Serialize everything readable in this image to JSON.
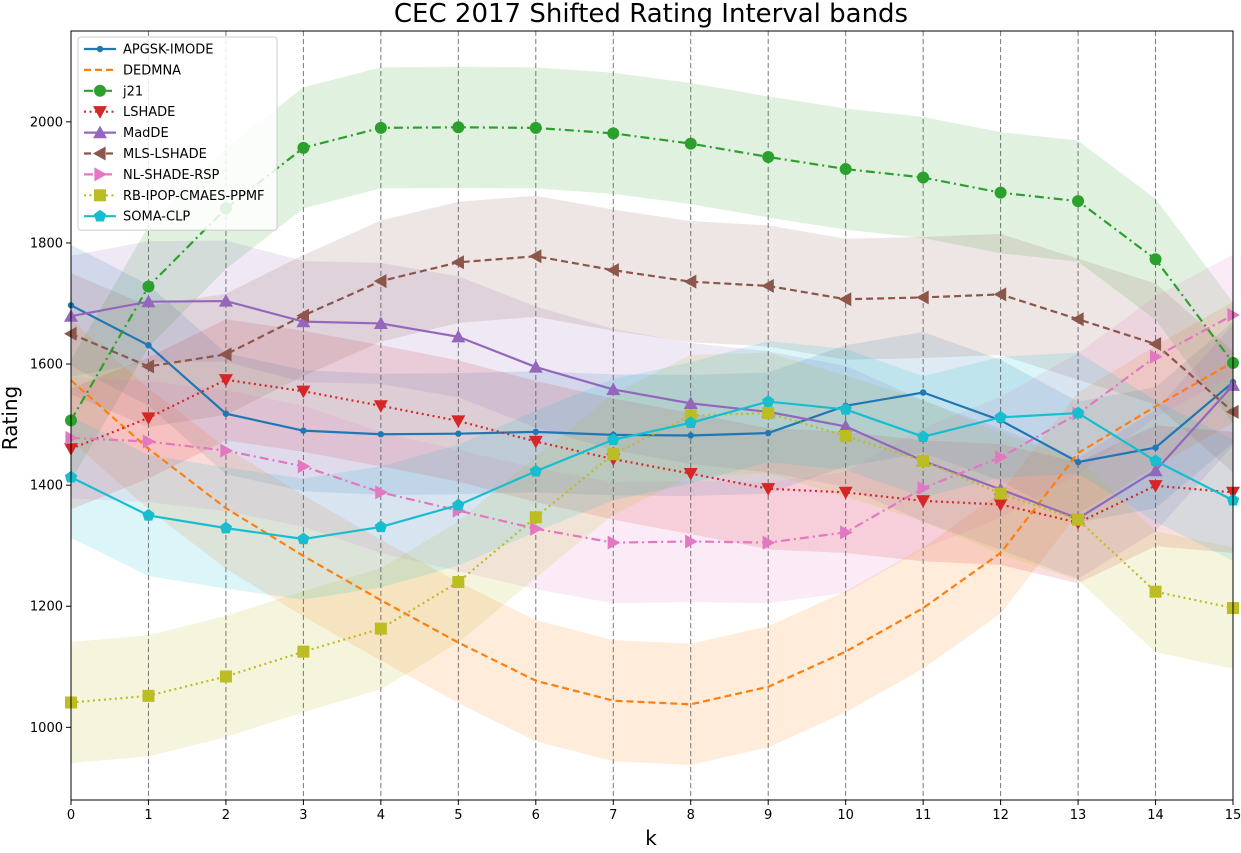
{
  "chart_data": {
    "type": "line",
    "title": "CEC 2017 Shifted Rating Interval bands",
    "xlabel": "k",
    "ylabel": "Rating",
    "x": [
      0,
      1,
      2,
      3,
      4,
      5,
      6,
      7,
      8,
      9,
      10,
      11,
      12,
      13,
      14,
      15
    ],
    "xlim": [
      0,
      15
    ],
    "ylim": [
      880,
      2150
    ],
    "yticks": [
      1000,
      1200,
      1400,
      1600,
      1800,
      2000
    ],
    "xticks": [
      0,
      1,
      2,
      3,
      4,
      5,
      6,
      7,
      8,
      9,
      10,
      11,
      12,
      13,
      14,
      15
    ],
    "band_halfwidth": 100,
    "vertical_gridlines": true,
    "legend_position": "top-left",
    "series": [
      {
        "name": "APGSK-IMODE",
        "color": "#1f77b4",
        "marker": "dot",
        "dash": "solid",
        "values": [
          1697,
          1631,
          1518,
          1490,
          1484,
          1485,
          1488,
          1483,
          1482,
          1486,
          1531,
          1553,
          1507,
          1438,
          1462,
          1570
        ]
      },
      {
        "name": "DEDMNA",
        "color": "#ff7f0e",
        "marker": "none",
        "dash": "dashed",
        "values": [
          1573,
          1460,
          1362,
          1283,
          1210,
          1140,
          1077,
          1044,
          1038,
          1067,
          1125,
          1197,
          1288,
          1453,
          1530,
          1603
        ]
      },
      {
        "name": "j21",
        "color": "#2ca02c",
        "marker": "circle",
        "dash": "dashdot",
        "values": [
          1507,
          1728,
          1857,
          1957,
          1990,
          1991,
          1990,
          1981,
          1964,
          1942,
          1922,
          1908,
          1883,
          1869,
          1773,
          1602
        ]
      },
      {
        "name": "LSHADE",
        "color": "#d62728",
        "marker": "triangle-down",
        "dash": "dotted",
        "values": [
          1460,
          1511,
          1574,
          1555,
          1531,
          1506,
          1472,
          1443,
          1419,
          1394,
          1388,
          1374,
          1368,
          1338,
          1399,
          1388
        ]
      },
      {
        "name": "MadDE",
        "color": "#9467bd",
        "marker": "triangle-up",
        "dash": "solid",
        "values": [
          1679,
          1703,
          1704,
          1670,
          1667,
          1645,
          1595,
          1558,
          1535,
          1521,
          1497,
          1440,
          1393,
          1345,
          1424,
          1565
        ]
      },
      {
        "name": "MLS-LSHADE",
        "color": "#8c564b",
        "marker": "triangle-left",
        "dash": "dashed",
        "values": [
          1650,
          1596,
          1616,
          1680,
          1737,
          1768,
          1778,
          1755,
          1736,
          1729,
          1707,
          1710,
          1715,
          1674,
          1633,
          1521
        ]
      },
      {
        "name": "NL-SHADE-RSP",
        "color": "#e377c2",
        "marker": "triangle-right",
        "dash": "dashdot",
        "values": [
          1478,
          1472,
          1457,
          1431,
          1388,
          1358,
          1328,
          1305,
          1307,
          1305,
          1322,
          1395,
          1446,
          1518,
          1612,
          1681
        ]
      },
      {
        "name": "RB-IPOP-CMAES-PPMF",
        "color": "#bcbd22",
        "marker": "square",
        "dash": "dotted",
        "values": [
          1041,
          1052,
          1084,
          1125,
          1163,
          1240,
          1347,
          1451,
          1515,
          1519,
          1481,
          1440,
          1386,
          1343,
          1224,
          1197
        ]
      },
      {
        "name": "SOMA-CLP",
        "color": "#17becf",
        "marker": "pentagon",
        "dash": "solid",
        "values": [
          1413,
          1350,
          1329,
          1311,
          1331,
          1367,
          1423,
          1475,
          1503,
          1538,
          1525,
          1480,
          1512,
          1519,
          1440,
          1375
        ]
      }
    ]
  }
}
